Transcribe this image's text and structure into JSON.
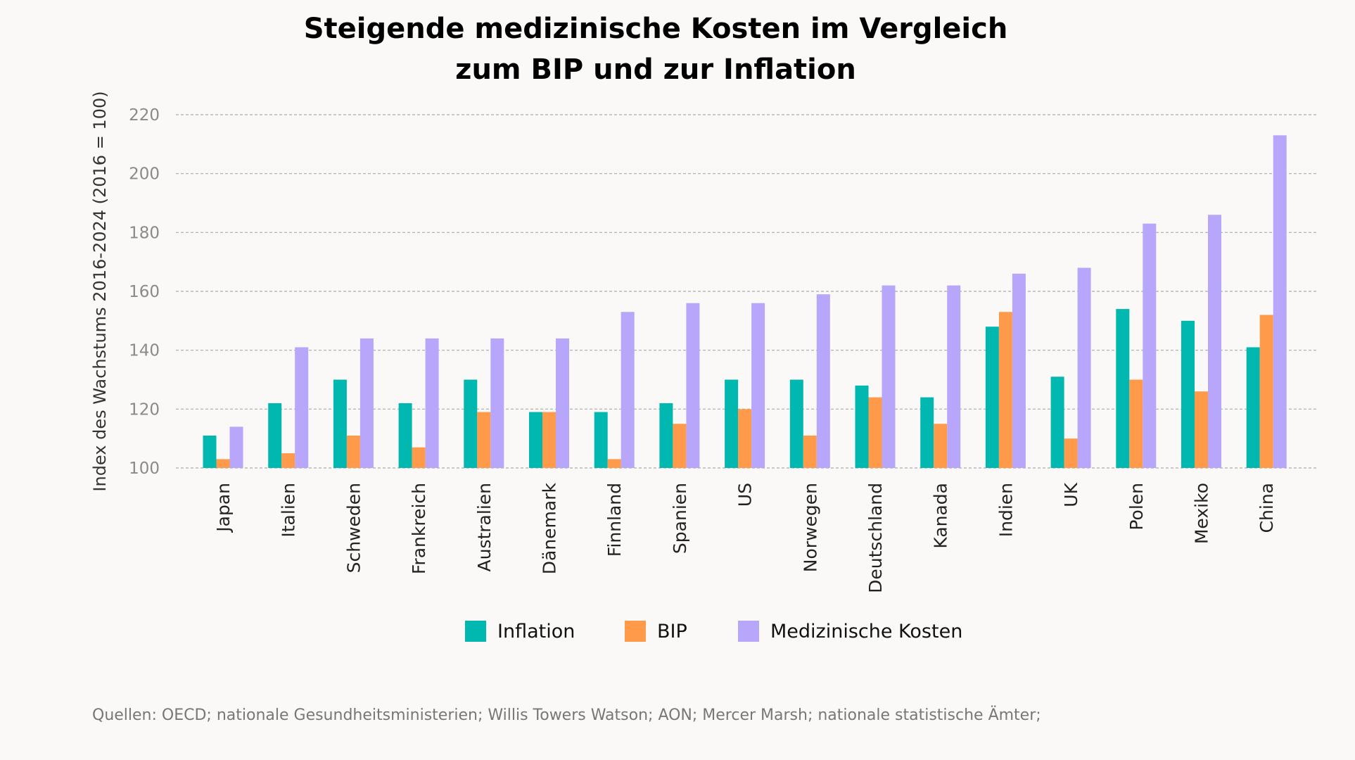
{
  "chart_data": {
    "type": "bar",
    "title": [
      "Steigende medizinische Kosten im Vergleich",
      "zum BIP und zur Inflation"
    ],
    "xlabel": "",
    "ylabel": "Index des Wachstums 2016-2024 (2016 = 100)",
    "ylim": [
      100,
      220
    ],
    "yticks": [
      100,
      120,
      140,
      160,
      180,
      200,
      220
    ],
    "grid": true,
    "legend_position": "bottom",
    "categories": [
      "Japan",
      "Italien",
      "Schweden",
      "Frankreich",
      "Australien",
      "Dänemark",
      "Finnland",
      "Spanien",
      "US",
      "Norwegen",
      "Deutschland",
      "Kanada",
      "Indien",
      "UK",
      "Polen",
      "Mexiko",
      "China"
    ],
    "series": [
      {
        "name": "Inflation",
        "color": "#00b8b0",
        "values": [
          111,
          122,
          130,
          122,
          130,
          119,
          119,
          122,
          130,
          130,
          128,
          124,
          148,
          131,
          154,
          150,
          141
        ]
      },
      {
        "name": "BIP",
        "color": "#ff9a4b",
        "values": [
          103,
          105,
          111,
          107,
          119,
          119,
          103,
          115,
          120,
          111,
          124,
          115,
          153,
          110,
          130,
          126,
          152
        ]
      },
      {
        "name": "Medizinische Kosten",
        "color": "#b8a6fa",
        "values": [
          114,
          141,
          144,
          144,
          144,
          144,
          153,
          156,
          156,
          159,
          162,
          162,
          166,
          168,
          183,
          186,
          213
        ]
      }
    ],
    "source": "Quellen: OECD; nationale Gesundheitsministerien; Willis Towers Watson; AON; Mercer Marsh; nationale statistische Ämter;"
  }
}
